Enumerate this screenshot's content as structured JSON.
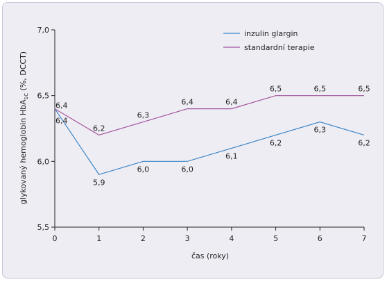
{
  "chart_data": {
    "type": "line",
    "x": [
      0,
      1,
      2,
      3,
      4,
      5,
      6,
      7
    ],
    "xlabel": "čas (roky)",
    "ylabel_main": "glykovaný hemoglobin HbA",
    "ylabel_sub": "1C",
    "ylabel_tail": " (%, DCCT)",
    "ylim": [
      5.5,
      7.0
    ],
    "xlim": [
      0,
      7
    ],
    "x_ticks": [
      "0",
      "1",
      "2",
      "3",
      "4",
      "5",
      "6",
      "7"
    ],
    "y_ticks": [
      {
        "value": 5.5,
        "label": "5,5"
      },
      {
        "value": 6.0,
        "label": "6,0"
      },
      {
        "value": 6.5,
        "label": "6,5"
      },
      {
        "value": 7.0,
        "label": "7,0"
      }
    ],
    "grid": false,
    "legend_position": "top-right",
    "series": [
      {
        "name": "inzulin glargin",
        "color": "#3b86c6",
        "values": [
          6.4,
          5.9,
          6.0,
          6.0,
          6.1,
          6.2,
          6.3,
          6.2
        ],
        "labels": [
          "6,4",
          "5,9",
          "6,0",
          "6,0",
          "6,1",
          "6,2",
          "6,3",
          "6,2"
        ]
      },
      {
        "name": "standardní terapie",
        "color": "#a1559b",
        "values": [
          6.4,
          6.2,
          6.3,
          6.4,
          6.4,
          6.5,
          6.5,
          6.5
        ],
        "labels": [
          "6,4",
          "6,2",
          "6,3",
          "6,4",
          "6,4",
          "6,5",
          "6,5",
          "6,5"
        ]
      }
    ]
  }
}
